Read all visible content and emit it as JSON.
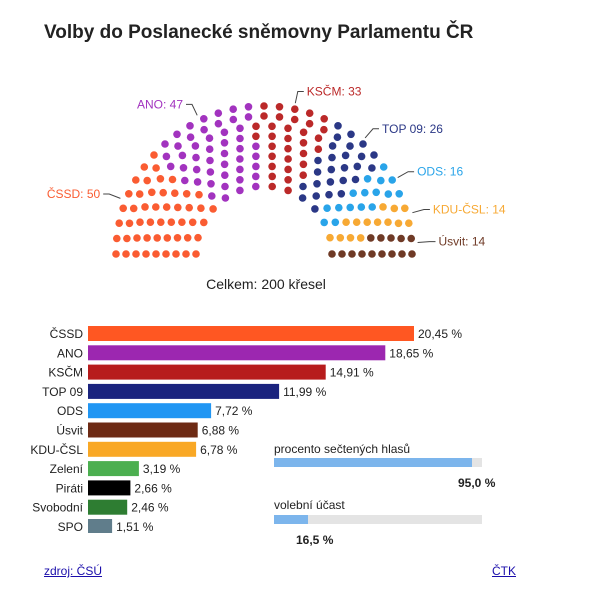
{
  "title": "Volby do Poslanecké sněmovny Parlamentu ČR",
  "total_label": "Celkem: 200 křesel",
  "chart_data": [
    {
      "type": "parliament",
      "total_seats": 200,
      "parties": [
        {
          "name": "ČSSD",
          "seats": 50,
          "label": "ČSSD: 50",
          "color": "#fa5c32"
        },
        {
          "name": "ANO",
          "seats": 47,
          "label": "ANO: 47",
          "color": "#a233bf"
        },
        {
          "name": "KSČM",
          "seats": 33,
          "label": "KSČM: 33",
          "color": "#bb2929"
        },
        {
          "name": "TOP 09",
          "seats": 26,
          "label": "TOP 09: 26",
          "color": "#2b3886"
        },
        {
          "name": "ODS",
          "seats": 16,
          "label": "ODS: 16",
          "color": "#29a4e9"
        },
        {
          "name": "KDU-ČSL",
          "seats": 14,
          "label": "KDU-ČSL: 14",
          "color": "#f7a934"
        },
        {
          "name": "Úsvit",
          "seats": 14,
          "label": "Úsvit: 14",
          "color": "#6f3a26"
        }
      ]
    },
    {
      "type": "bar",
      "orientation": "horizontal",
      "categories": [
        "ČSSD",
        "ANO",
        "KSČM",
        "TOP 09",
        "ODS",
        "Úsvit",
        "KDU-ČSL",
        "Zelení",
        "Piráti",
        "Svobodní",
        "SPO"
      ],
      "values": [
        20.45,
        18.65,
        14.91,
        11.99,
        7.72,
        6.88,
        6.78,
        3.19,
        2.66,
        2.46,
        1.51
      ],
      "value_labels": [
        "20,45 %",
        "18,65 %",
        "14,91 %",
        "11,99 %",
        "7,72 %",
        "6,88 %",
        "6,78 %",
        "3,19 %",
        "2,66 %",
        "2,46 %",
        "1,51 %"
      ],
      "colors": [
        "#ff5722",
        "#9c27b0",
        "#b71c1c",
        "#1a237e",
        "#2196f3",
        "#6d2a14",
        "#f9a825",
        "#4caf50",
        "#000000",
        "#2e7d32",
        "#607d8b"
      ],
      "xlim": [
        0,
        20.45
      ]
    }
  ],
  "status": {
    "counted": {
      "label": "procento sečtených hlasů",
      "value": 95.0,
      "value_label": "95,0 %"
    },
    "turnout": {
      "label": "volební účast",
      "value": 16.5,
      "value_label": "16,5 %"
    }
  },
  "footer": {
    "source_link": "zdroj: ČSÚ",
    "agency_link": "ČTK"
  }
}
